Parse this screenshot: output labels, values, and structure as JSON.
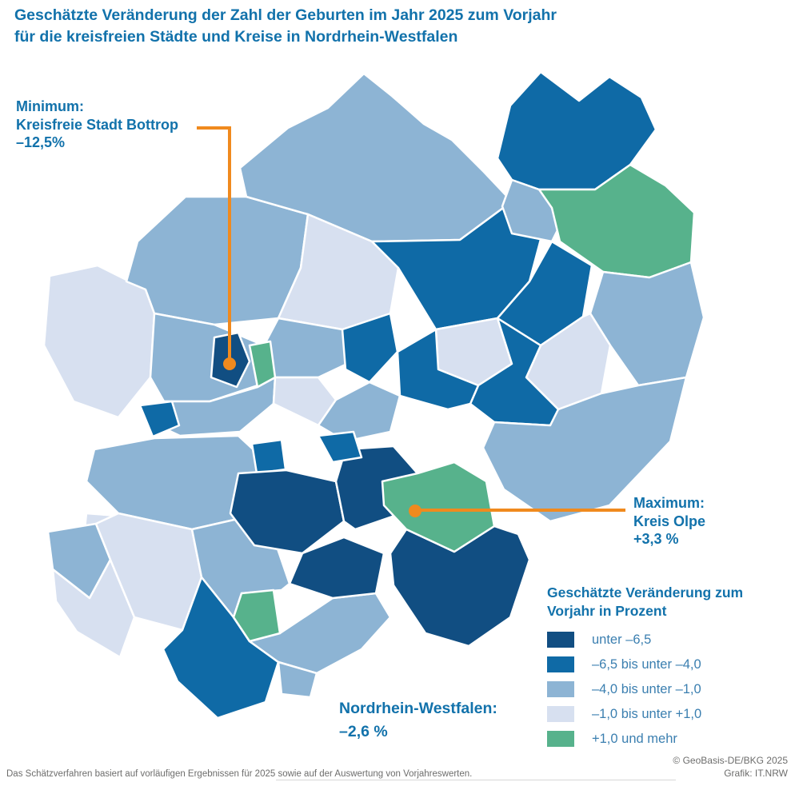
{
  "title": {
    "line1": "Geschätzte Veränderung der Zahl der Geburten im Jahr 2025 zum Vorjahr",
    "line2": "für die kreisfreien Städte und Kreise in Nordrhein-Westfalen"
  },
  "annotations": {
    "minimum": {
      "label": "Minimum:",
      "region": "Kreisfreie Stadt Bottrop",
      "value": "–12,5%"
    },
    "maximum": {
      "label": "Maximum:",
      "region": "Kreis Olpe",
      "value": "+3,3 %"
    }
  },
  "state_total": {
    "label": "Nordrhein-Westfalen:",
    "value": "–2,6 %"
  },
  "legend": {
    "title_line1": "Geschätzte Veränderung zum",
    "title_line2": "Vorjahr in Prozent",
    "items": [
      {
        "label": "unter –6,5",
        "color": "#114e82",
        "cls": "c1"
      },
      {
        "label": "–6,5 bis unter –4,0",
        "color": "#0f6aa6",
        "cls": "c2"
      },
      {
        "label": "–4,0 bis unter –1,0",
        "color": "#8db4d4",
        "cls": "c3"
      },
      {
        "label": "–1,0 bis unter +1,0",
        "color": "#d7e0f0",
        "cls": "c4"
      },
      {
        "label": "+1,0 und mehr",
        "color": "#57b28c",
        "cls": "c5"
      }
    ]
  },
  "map": {
    "accent_color": "#f08a1e",
    "border_color": "#ffffff",
    "regions": [
      {
        "id": "kleve",
        "cls": "c4"
      },
      {
        "id": "borken",
        "cls": "c3"
      },
      {
        "id": "steinfurt",
        "cls": "c3"
      },
      {
        "id": "coesfeld",
        "cls": "c4"
      },
      {
        "id": "muenster-warendorf",
        "cls": "c2"
      },
      {
        "id": "minden-luebbecke",
        "cls": "c2"
      },
      {
        "id": "herford",
        "cls": "c3"
      },
      {
        "id": "lippe",
        "cls": "c5"
      },
      {
        "id": "guetersloh",
        "cls": "c2"
      },
      {
        "id": "hamm",
        "cls": "c4"
      },
      {
        "id": "hoexter",
        "cls": "c3"
      },
      {
        "id": "paderborn",
        "cls": "c4"
      },
      {
        "id": "soest",
        "cls": "c2"
      },
      {
        "id": "hochsauerland",
        "cls": "c3"
      },
      {
        "id": "wesel",
        "cls": "c3"
      },
      {
        "id": "recklinghausen",
        "cls": "c3"
      },
      {
        "id": "dortmund",
        "cls": "c2"
      },
      {
        "id": "unna",
        "cls": "c2"
      },
      {
        "id": "ruhr-west",
        "cls": "c3"
      },
      {
        "id": "bochum",
        "cls": "c4"
      },
      {
        "id": "ennepe-ruhr",
        "cls": "c3"
      },
      {
        "id": "krefeld",
        "cls": "c2"
      },
      {
        "id": "niederrhein",
        "cls": "c3"
      },
      {
        "id": "muelheim",
        "cls": "c2"
      },
      {
        "id": "moenchengladbach",
        "cls": "c4"
      },
      {
        "id": "aachen",
        "cls": "c3"
      },
      {
        "id": "aachen-sued",
        "cls": "c4"
      },
      {
        "id": "dueren",
        "cls": "c4"
      },
      {
        "id": "koeln",
        "cls": "c3"
      },
      {
        "id": "euskirchen",
        "cls": "c2"
      },
      {
        "id": "rhein-sieg",
        "cls": "c3"
      },
      {
        "id": "bonn",
        "cls": "c3"
      },
      {
        "id": "wuppertal-mettmann",
        "cls": "c1"
      },
      {
        "id": "maerkischer-kreis",
        "cls": "c1"
      },
      {
        "id": "hagen",
        "cls": "c2"
      },
      {
        "id": "oberbergischer",
        "cls": "c1"
      },
      {
        "id": "siegen-wittgenstein",
        "cls": "c1"
      },
      {
        "id": "olpe",
        "cls": "c5"
      },
      {
        "id": "rheinisch-bergischer",
        "cls": "c5"
      },
      {
        "id": "bottrop",
        "cls": "c1"
      },
      {
        "id": "gelsenkirchen",
        "cls": "c5"
      }
    ]
  },
  "footer": {
    "note": "Das Schätzverfahren basiert auf vorläufigen Ergebnissen für 2025 sowie auf der Auswertung von Vorjahreswerten.",
    "credit_line1": "© GeoBasis-DE/BKG 2025",
    "credit_line2": "Grafik: IT.NRW"
  },
  "text_colors": {
    "heading": "#1272ab",
    "legend_label": "#3b7fb0",
    "footnote": "#6d6d6c"
  }
}
